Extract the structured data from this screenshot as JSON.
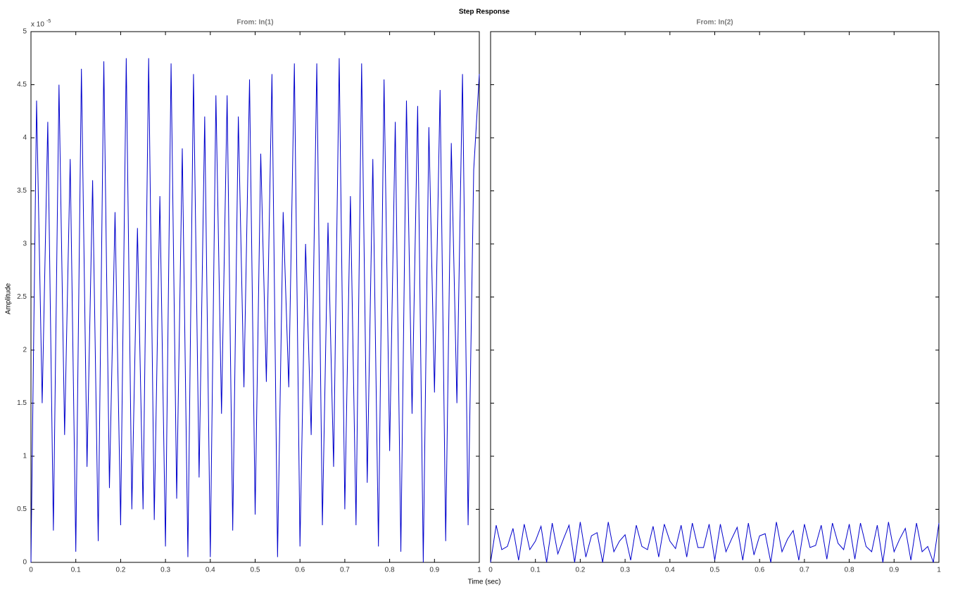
{
  "title": "Step Response",
  "xlabel": "Time (sec)",
  "ylabel": "Amplitude",
  "chart_data": [
    {
      "type": "line",
      "title": "From: In(1)",
      "color": "#0000cc",
      "y_exponent_base": "x 10",
      "y_exponent": "-5",
      "x": [
        0,
        0.0125,
        0.025,
        0.0375,
        0.05,
        0.0625,
        0.075,
        0.0875,
        0.1,
        0.1125,
        0.125,
        0.1375,
        0.15,
        0.1625,
        0.175,
        0.1875,
        0.2,
        0.2125,
        0.225,
        0.2375,
        0.25,
        0.2625,
        0.275,
        0.2875,
        0.3,
        0.3125,
        0.325,
        0.3375,
        0.35,
        0.3625,
        0.375,
        0.3875,
        0.4,
        0.4125,
        0.425,
        0.4375,
        0.45,
        0.4625,
        0.475,
        0.4875,
        0.5,
        0.5125,
        0.525,
        0.5375,
        0.55,
        0.5625,
        0.575,
        0.5875,
        0.6,
        0.6125,
        0.625,
        0.6375,
        0.65,
        0.6625,
        0.675,
        0.6875,
        0.7,
        0.7125,
        0.725,
        0.7375,
        0.75,
        0.7625,
        0.775,
        0.7875,
        0.8,
        0.8125,
        0.825,
        0.8375,
        0.85,
        0.8625,
        0.875,
        0.8875,
        0.9,
        0.9125,
        0.925,
        0.9375,
        0.95,
        0.9625,
        0.975,
        0.9875,
        1
      ],
      "values": [
        0,
        4.35,
        1.5,
        4.15,
        0.3,
        4.5,
        1.2,
        3.8,
        0.1,
        4.65,
        0.9,
        3.6,
        0.2,
        4.72,
        0.7,
        3.3,
        0.35,
        4.75,
        0.5,
        3.15,
        0.5,
        4.75,
        0.4,
        3.45,
        0.15,
        4.7,
        0.6,
        3.9,
        0.05,
        4.6,
        0.8,
        4.2,
        0.05,
        4.4,
        1.4,
        4.4,
        0.3,
        4.2,
        1.65,
        4.55,
        0.45,
        3.85,
        1.7,
        4.6,
        0.05,
        3.3,
        1.65,
        4.7,
        0.15,
        3.0,
        1.2,
        4.7,
        0.35,
        3.2,
        0.9,
        4.75,
        0.5,
        3.45,
        0.35,
        4.7,
        0.75,
        3.8,
        0.15,
        4.55,
        1.05,
        4.15,
        0.1,
        4.35,
        1.4,
        4.3,
        0,
        4.1,
        1.6,
        4.45,
        0.2,
        3.95,
        1.5,
        4.6,
        0.35,
        3.7,
        4.6
      ],
      "xlim": [
        0,
        1
      ],
      "xticks": [
        0,
        0.1,
        0.2,
        0.3,
        0.4,
        0.5,
        0.6,
        0.7,
        0.8,
        0.9,
        1
      ],
      "ylim": [
        0,
        5
      ],
      "yticks": [
        0,
        0.5,
        1,
        1.5,
        2,
        2.5,
        3,
        3.5,
        4,
        4.5,
        5
      ],
      "show_ytick_labels": true
    },
    {
      "type": "line",
      "title": "From: In(2)",
      "color": "#0000cc",
      "x": [
        0,
        0.0125,
        0.025,
        0.0375,
        0.05,
        0.0625,
        0.075,
        0.0875,
        0.1,
        0.1125,
        0.125,
        0.1375,
        0.15,
        0.1625,
        0.175,
        0.1875,
        0.2,
        0.2125,
        0.225,
        0.2375,
        0.25,
        0.2625,
        0.275,
        0.2875,
        0.3,
        0.3125,
        0.325,
        0.3375,
        0.35,
        0.3625,
        0.375,
        0.3875,
        0.4,
        0.4125,
        0.425,
        0.4375,
        0.45,
        0.4625,
        0.475,
        0.4875,
        0.5,
        0.5125,
        0.525,
        0.5375,
        0.55,
        0.5625,
        0.575,
        0.5875,
        0.6,
        0.6125,
        0.625,
        0.6375,
        0.65,
        0.6625,
        0.675,
        0.6875,
        0.7,
        0.7125,
        0.725,
        0.7375,
        0.75,
        0.7625,
        0.775,
        0.7875,
        0.8,
        0.8125,
        0.825,
        0.8375,
        0.85,
        0.8625,
        0.875,
        0.8875,
        0.9,
        0.9125,
        0.925,
        0.9375,
        0.95,
        0.9625,
        0.975,
        0.9875,
        1
      ],
      "values": [
        0,
        0.35,
        0.12,
        0.15,
        0.32,
        0.02,
        0.36,
        0.12,
        0.2,
        0.34,
        0,
        0.37,
        0.08,
        0.22,
        0.35,
        0,
        0.38,
        0.05,
        0.25,
        0.28,
        0,
        0.38,
        0.1,
        0.2,
        0.26,
        0.02,
        0.35,
        0.15,
        0.12,
        0.34,
        0.05,
        0.36,
        0.2,
        0.13,
        0.35,
        0.05,
        0.37,
        0.14,
        0.14,
        0.36,
        0.02,
        0.36,
        0.1,
        0.22,
        0.33,
        0.02,
        0.37,
        0.07,
        0.25,
        0.27,
        0,
        0.38,
        0.1,
        0.22,
        0.3,
        0.02,
        0.36,
        0.14,
        0.16,
        0.35,
        0.03,
        0.37,
        0.18,
        0.12,
        0.36,
        0.03,
        0.37,
        0.15,
        0.1,
        0.35,
        0,
        0.38,
        0.1,
        0.22,
        0.32,
        0.02,
        0.37,
        0.1,
        0.15,
        0,
        0.37
      ],
      "xlim": [
        0,
        1
      ],
      "xticks": [
        0,
        0.1,
        0.2,
        0.3,
        0.4,
        0.5,
        0.6,
        0.7,
        0.8,
        0.9,
        1
      ],
      "ylim": [
        0,
        5
      ],
      "yticks": [
        0,
        0.5,
        1,
        1.5,
        2,
        2.5,
        3,
        3.5,
        4,
        4.5,
        5
      ],
      "show_ytick_labels": false
    }
  ]
}
